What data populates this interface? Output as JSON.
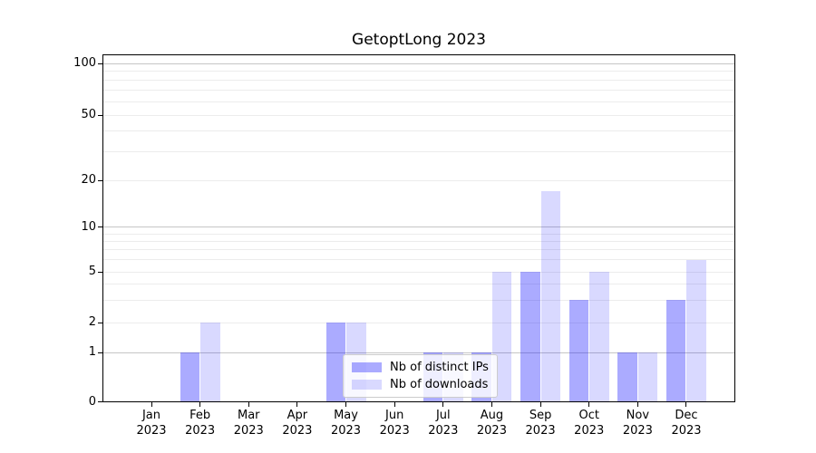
{
  "chart_data": {
    "type": "bar",
    "title": "GetoptLong 2023",
    "categories": [
      "Jan",
      "Feb",
      "Mar",
      "Apr",
      "May",
      "Jun",
      "Jul",
      "Aug",
      "Sep",
      "Oct",
      "Nov",
      "Dec"
    ],
    "category_year": "2023",
    "series": [
      {
        "name": "Nb of distinct IPs",
        "color": "rgba(0,0,255,0.33)",
        "values": [
          0,
          1,
          0,
          0,
          2,
          0,
          1,
          1,
          5,
          3,
          1,
          3
        ]
      },
      {
        "name": "Nb of downloads",
        "color": "rgba(0,0,255,0.15)",
        "values": [
          0,
          2,
          0,
          0,
          2,
          0,
          1,
          5,
          17,
          5,
          1,
          6
        ]
      }
    ],
    "y_axis": {
      "ticks": [
        0,
        1,
        2,
        5,
        10,
        20,
        50,
        100
      ],
      "scale": "log-like (0 baseline then logarithmic)",
      "ylim": [
        0,
        120
      ]
    },
    "x_axis": {
      "ticks_per_month": true,
      "label_lines": 2
    },
    "grid": {
      "horizontal": true,
      "minor_values": [
        2,
        3,
        4,
        5,
        6,
        7,
        8,
        9,
        20,
        30,
        40,
        50,
        60,
        70,
        80,
        90
      ],
      "major_values": [
        1,
        10,
        100
      ]
    },
    "legend": {
      "position": "lower-center-inside",
      "entries": [
        "Nb of distinct IPs",
        "Nb of downloads"
      ]
    },
    "colors": {
      "axis": "#000000",
      "grid_minor": "#ececec",
      "grid_major": "#c6c6c6",
      "legend_border": "#cccccc"
    }
  }
}
